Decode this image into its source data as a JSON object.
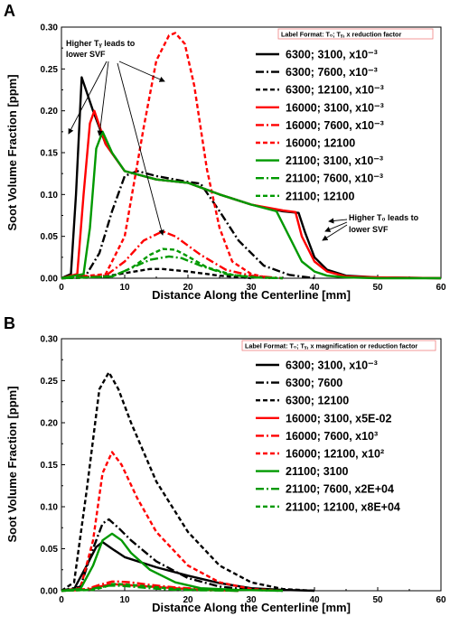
{
  "chart_data": [
    {
      "panel": "A",
      "type": "line",
      "xlabel": "Distance Along the Centerline [mm]",
      "ylabel": "Soot Volume Fraction [ppm]",
      "xlim": [
        0,
        60
      ],
      "ylim": [
        0,
        0.3
      ],
      "xticks": [
        "0",
        "10",
        "20",
        "30",
        "40",
        "50",
        "60"
      ],
      "yticks": [
        "0.00",
        "0.05",
        "0.10",
        "0.15",
        "0.20",
        "0.25",
        "0.30"
      ],
      "legend_title": "Label Format: T₀; Tᵧ,  x reduction factor",
      "legend_position": "top-right",
      "annotations": [
        {
          "text_line1": "Higher Tᵧ leads to",
          "text_line2": "lower SVF"
        },
        {
          "text_line1": "Higher T₀ leads to",
          "text_line2": "lower SVF"
        }
      ],
      "series": [
        {
          "name": "6300; 3100, x10⁻³",
          "color": "#000000",
          "dash": "solid",
          "x": [
            0,
            1.5,
            2.3,
            3.2,
            5,
            7,
            10,
            15,
            20,
            25,
            30,
            35,
            37.5,
            38.5,
            40,
            42,
            45,
            50,
            60
          ],
          "y": [
            0,
            0.005,
            0.1,
            0.24,
            0.2,
            0.16,
            0.128,
            0.118,
            0.114,
            0.1,
            0.088,
            0.08,
            0.078,
            0.055,
            0.025,
            0.01,
            0.003,
            0.001,
            0
          ]
        },
        {
          "name": "6300; 7600, x10⁻³",
          "color": "#000000",
          "dash": "dashdot",
          "x": [
            0,
            4,
            6,
            8,
            10,
            12,
            15,
            20,
            22,
            25,
            28,
            32,
            36,
            40
          ],
          "y": [
            0,
            0.005,
            0.03,
            0.08,
            0.122,
            0.128,
            0.122,
            0.115,
            0.113,
            0.08,
            0.045,
            0.015,
            0.004,
            0
          ]
        },
        {
          "name": "6300; 12100, x10⁻³",
          "color": "#000000",
          "dash": "dash",
          "x": [
            0,
            6,
            10,
            14,
            16,
            20,
            25,
            30
          ],
          "y": [
            0,
            0.001,
            0.006,
            0.011,
            0.011,
            0.008,
            0.003,
            0
          ]
        },
        {
          "name": "16000; 3100, x10⁻³",
          "color": "#ff0000",
          "dash": "solid",
          "x": [
            0,
            2.5,
            3.5,
            4.5,
            5.2,
            7,
            10,
            15,
            20,
            25,
            30,
            35,
            37,
            38,
            40,
            42,
            45,
            50,
            60
          ],
          "y": [
            0,
            0.005,
            0.1,
            0.185,
            0.2,
            0.16,
            0.128,
            0.118,
            0.114,
            0.1,
            0.088,
            0.081,
            0.079,
            0.05,
            0.02,
            0.008,
            0.002,
            0.001,
            0
          ]
        },
        {
          "name": "16000; 7600, x10⁻³",
          "color": "#ff0000",
          "dash": "dashdot",
          "x": [
            0,
            7,
            10,
            13,
            16,
            18,
            22,
            26,
            30,
            35
          ],
          "y": [
            0,
            0.003,
            0.02,
            0.045,
            0.056,
            0.05,
            0.028,
            0.01,
            0.003,
            0
          ]
        },
        {
          "name": "16000; 12100",
          "color": "#ff0000",
          "dash": "dash",
          "x": [
            0,
            7,
            10,
            13,
            15,
            17,
            18,
            19.5,
            21,
            23,
            25,
            27,
            30,
            33
          ],
          "y": [
            0,
            0.005,
            0.05,
            0.18,
            0.26,
            0.29,
            0.293,
            0.28,
            0.23,
            0.13,
            0.06,
            0.02,
            0.005,
            0
          ]
        },
        {
          "name": "21100; 3100, x10⁻³",
          "color": "#009900",
          "dash": "solid",
          "x": [
            0,
            3.5,
            4.5,
            5.5,
            6.5,
            8,
            10,
            15,
            20,
            25,
            30,
            34,
            36,
            38,
            40,
            42,
            45,
            50,
            60
          ],
          "y": [
            0,
            0.005,
            0.06,
            0.155,
            0.175,
            0.15,
            0.128,
            0.118,
            0.114,
            0.1,
            0.088,
            0.08,
            0.05,
            0.02,
            0.008,
            0.003,
            0.001,
            0,
            0
          ]
        },
        {
          "name": "21100; 7600, x10⁻³",
          "color": "#009900",
          "dash": "dashdot",
          "x": [
            0,
            8,
            11,
            14,
            17,
            19,
            22,
            26,
            30,
            35
          ],
          "y": [
            0,
            0.002,
            0.012,
            0.022,
            0.026,
            0.024,
            0.015,
            0.005,
            0.001,
            0
          ]
        },
        {
          "name": "21100; 12100",
          "color": "#009900",
          "dash": "dash",
          "x": [
            0,
            8,
            11,
            14,
            16,
            18,
            20,
            23,
            27,
            31,
            35
          ],
          "y": [
            0,
            0.002,
            0.012,
            0.028,
            0.035,
            0.034,
            0.026,
            0.013,
            0.004,
            0.001,
            0
          ]
        }
      ]
    },
    {
      "panel": "B",
      "type": "line",
      "xlabel": "Distance Along the Centerline [mm]",
      "ylabel": "Soot Volume Fraction [ppm]",
      "xlim": [
        0,
        60
      ],
      "ylim": [
        0,
        0.3
      ],
      "xticks": [
        "0",
        "10",
        "20",
        "30",
        "40",
        "50",
        "60"
      ],
      "yticks": [
        "0.00",
        "0.05",
        "0.10",
        "0.15",
        "0.20",
        "0.25",
        "0.30"
      ],
      "legend_title": "Label Format: T₀; Tᵧ,  x magnification or reduction factor",
      "legend_position": "top-right",
      "series": [
        {
          "name": "6300; 3100, x10⁻³",
          "color": "#000000",
          "dash": "solid",
          "x": [
            0,
            2,
            4,
            5.5,
            6.5,
            8,
            10,
            15,
            20,
            25,
            30,
            35,
            40
          ],
          "y": [
            0,
            0.002,
            0.03,
            0.052,
            0.058,
            0.05,
            0.04,
            0.028,
            0.018,
            0.009,
            0.003,
            0.001,
            0
          ]
        },
        {
          "name": "6300; 7600",
          "color": "#000000",
          "dash": "dashdot",
          "x": [
            0,
            3,
            5,
            6.5,
            7.5,
            9,
            11,
            15,
            20,
            25,
            30,
            35
          ],
          "y": [
            0,
            0.005,
            0.05,
            0.08,
            0.085,
            0.075,
            0.06,
            0.035,
            0.015,
            0.005,
            0.001,
            0
          ]
        },
        {
          "name": "6300; 12100",
          "color": "#000000",
          "dash": "dash",
          "x": [
            0,
            2,
            4,
            6,
            7.5,
            9,
            11,
            15,
            20,
            25,
            30,
            35,
            40
          ],
          "y": [
            0,
            0.01,
            0.12,
            0.24,
            0.26,
            0.24,
            0.2,
            0.13,
            0.07,
            0.03,
            0.01,
            0.002,
            0
          ]
        },
        {
          "name": "16000; 3100, x5E-02",
          "color": "#ff0000",
          "dash": "solid",
          "x": [
            0,
            4,
            6,
            8,
            10,
            14,
            18,
            22,
            28
          ],
          "y": [
            0,
            0.001,
            0.005,
            0.008,
            0.007,
            0.005,
            0.003,
            0.001,
            0
          ]
        },
        {
          "name": "16000; 7600, x10³",
          "color": "#ff0000",
          "dash": "dashdot",
          "x": [
            0,
            4,
            6,
            8,
            9,
            11,
            14,
            18,
            22,
            28
          ],
          "y": [
            0,
            0.002,
            0.007,
            0.011,
            0.011,
            0.01,
            0.007,
            0.004,
            0.002,
            0
          ]
        },
        {
          "name": "16000; 12100, x10²",
          "color": "#ff0000",
          "dash": "dash",
          "x": [
            0,
            3,
            5,
            6.5,
            8,
            9.5,
            12,
            15,
            20,
            25,
            30,
            35
          ],
          "y": [
            0,
            0.003,
            0.06,
            0.14,
            0.165,
            0.15,
            0.11,
            0.07,
            0.03,
            0.01,
            0.002,
            0
          ]
        },
        {
          "name": "21100; 3100",
          "color": "#009900",
          "dash": "solid",
          "x": [
            0,
            3,
            5,
            6.5,
            8,
            9.5,
            11,
            14,
            18,
            22,
            28,
            35
          ],
          "y": [
            0,
            0.002,
            0.03,
            0.06,
            0.068,
            0.06,
            0.045,
            0.025,
            0.01,
            0.003,
            0.001,
            0
          ]
        },
        {
          "name": "21100; 7600, x2E+04",
          "color": "#009900",
          "dash": "dashdot",
          "x": [
            0,
            4,
            6,
            7.5,
            9,
            11,
            14,
            18,
            22,
            28
          ],
          "y": [
            0,
            0.001,
            0.004,
            0.006,
            0.006,
            0.005,
            0.003,
            0.001,
            0.0005,
            0
          ]
        },
        {
          "name": "21100; 12100, x8E+04",
          "color": "#009900",
          "dash": "dash",
          "x": [
            0,
            5,
            7,
            8,
            9,
            11,
            14,
            18,
            22,
            28
          ],
          "y": [
            0,
            0.001,
            0.005,
            0.008,
            0.008,
            0.007,
            0.005,
            0.002,
            0.001,
            0
          ]
        }
      ]
    }
  ]
}
